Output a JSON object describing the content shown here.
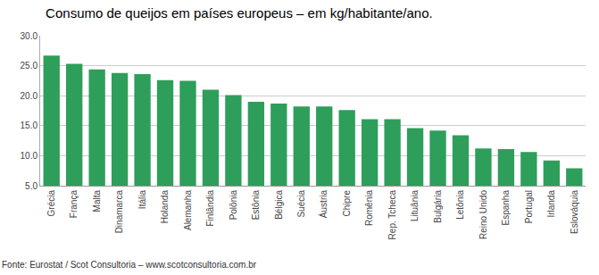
{
  "chart_data": {
    "type": "bar",
    "title": "Consumo de queijos em países europeus – em kg/habitante/ano.",
    "annotations": [
      "Fonte: Eurostat / Scot Consultoria – www.scotconsultoria.com.br"
    ],
    "categories": [
      "Grécia",
      "França",
      "Malta",
      "Dinamarca",
      "Itália",
      "Holanda",
      "Alemanha",
      "Finlândia",
      "Polônia",
      "Estônia",
      "Bélgica",
      "Suécia",
      "Áustria",
      "Chipre",
      "Romênia",
      "Rep. Tcheca",
      "Lituânia",
      "Bulgária",
      "Letônia",
      "Reino Unido",
      "Espanha",
      "Portugal",
      "Irlanda",
      "Eslováquia"
    ],
    "values": [
      26.7,
      25.3,
      24.4,
      23.8,
      23.6,
      22.6,
      22.5,
      21.0,
      20.1,
      19.0,
      18.7,
      18.2,
      18.2,
      17.6,
      16.1,
      16.1,
      14.6,
      14.2,
      13.4,
      11.2,
      11.1,
      10.6,
      9.2,
      7.9
    ],
    "color": "#2e9e5b",
    "ylim": [
      5.0,
      30.0
    ],
    "yticks": [
      {
        "value": 5.0,
        "label": "5.0"
      },
      {
        "value": 10.0,
        "label": "10.0"
      },
      {
        "value": 15.0,
        "label": "15.0"
      },
      {
        "value": 20.0,
        "label": "20.0"
      },
      {
        "value": 25.0,
        "label": "25.0"
      },
      {
        "value": 30.0,
        "label": "30.0"
      }
    ],
    "grid": true
  }
}
